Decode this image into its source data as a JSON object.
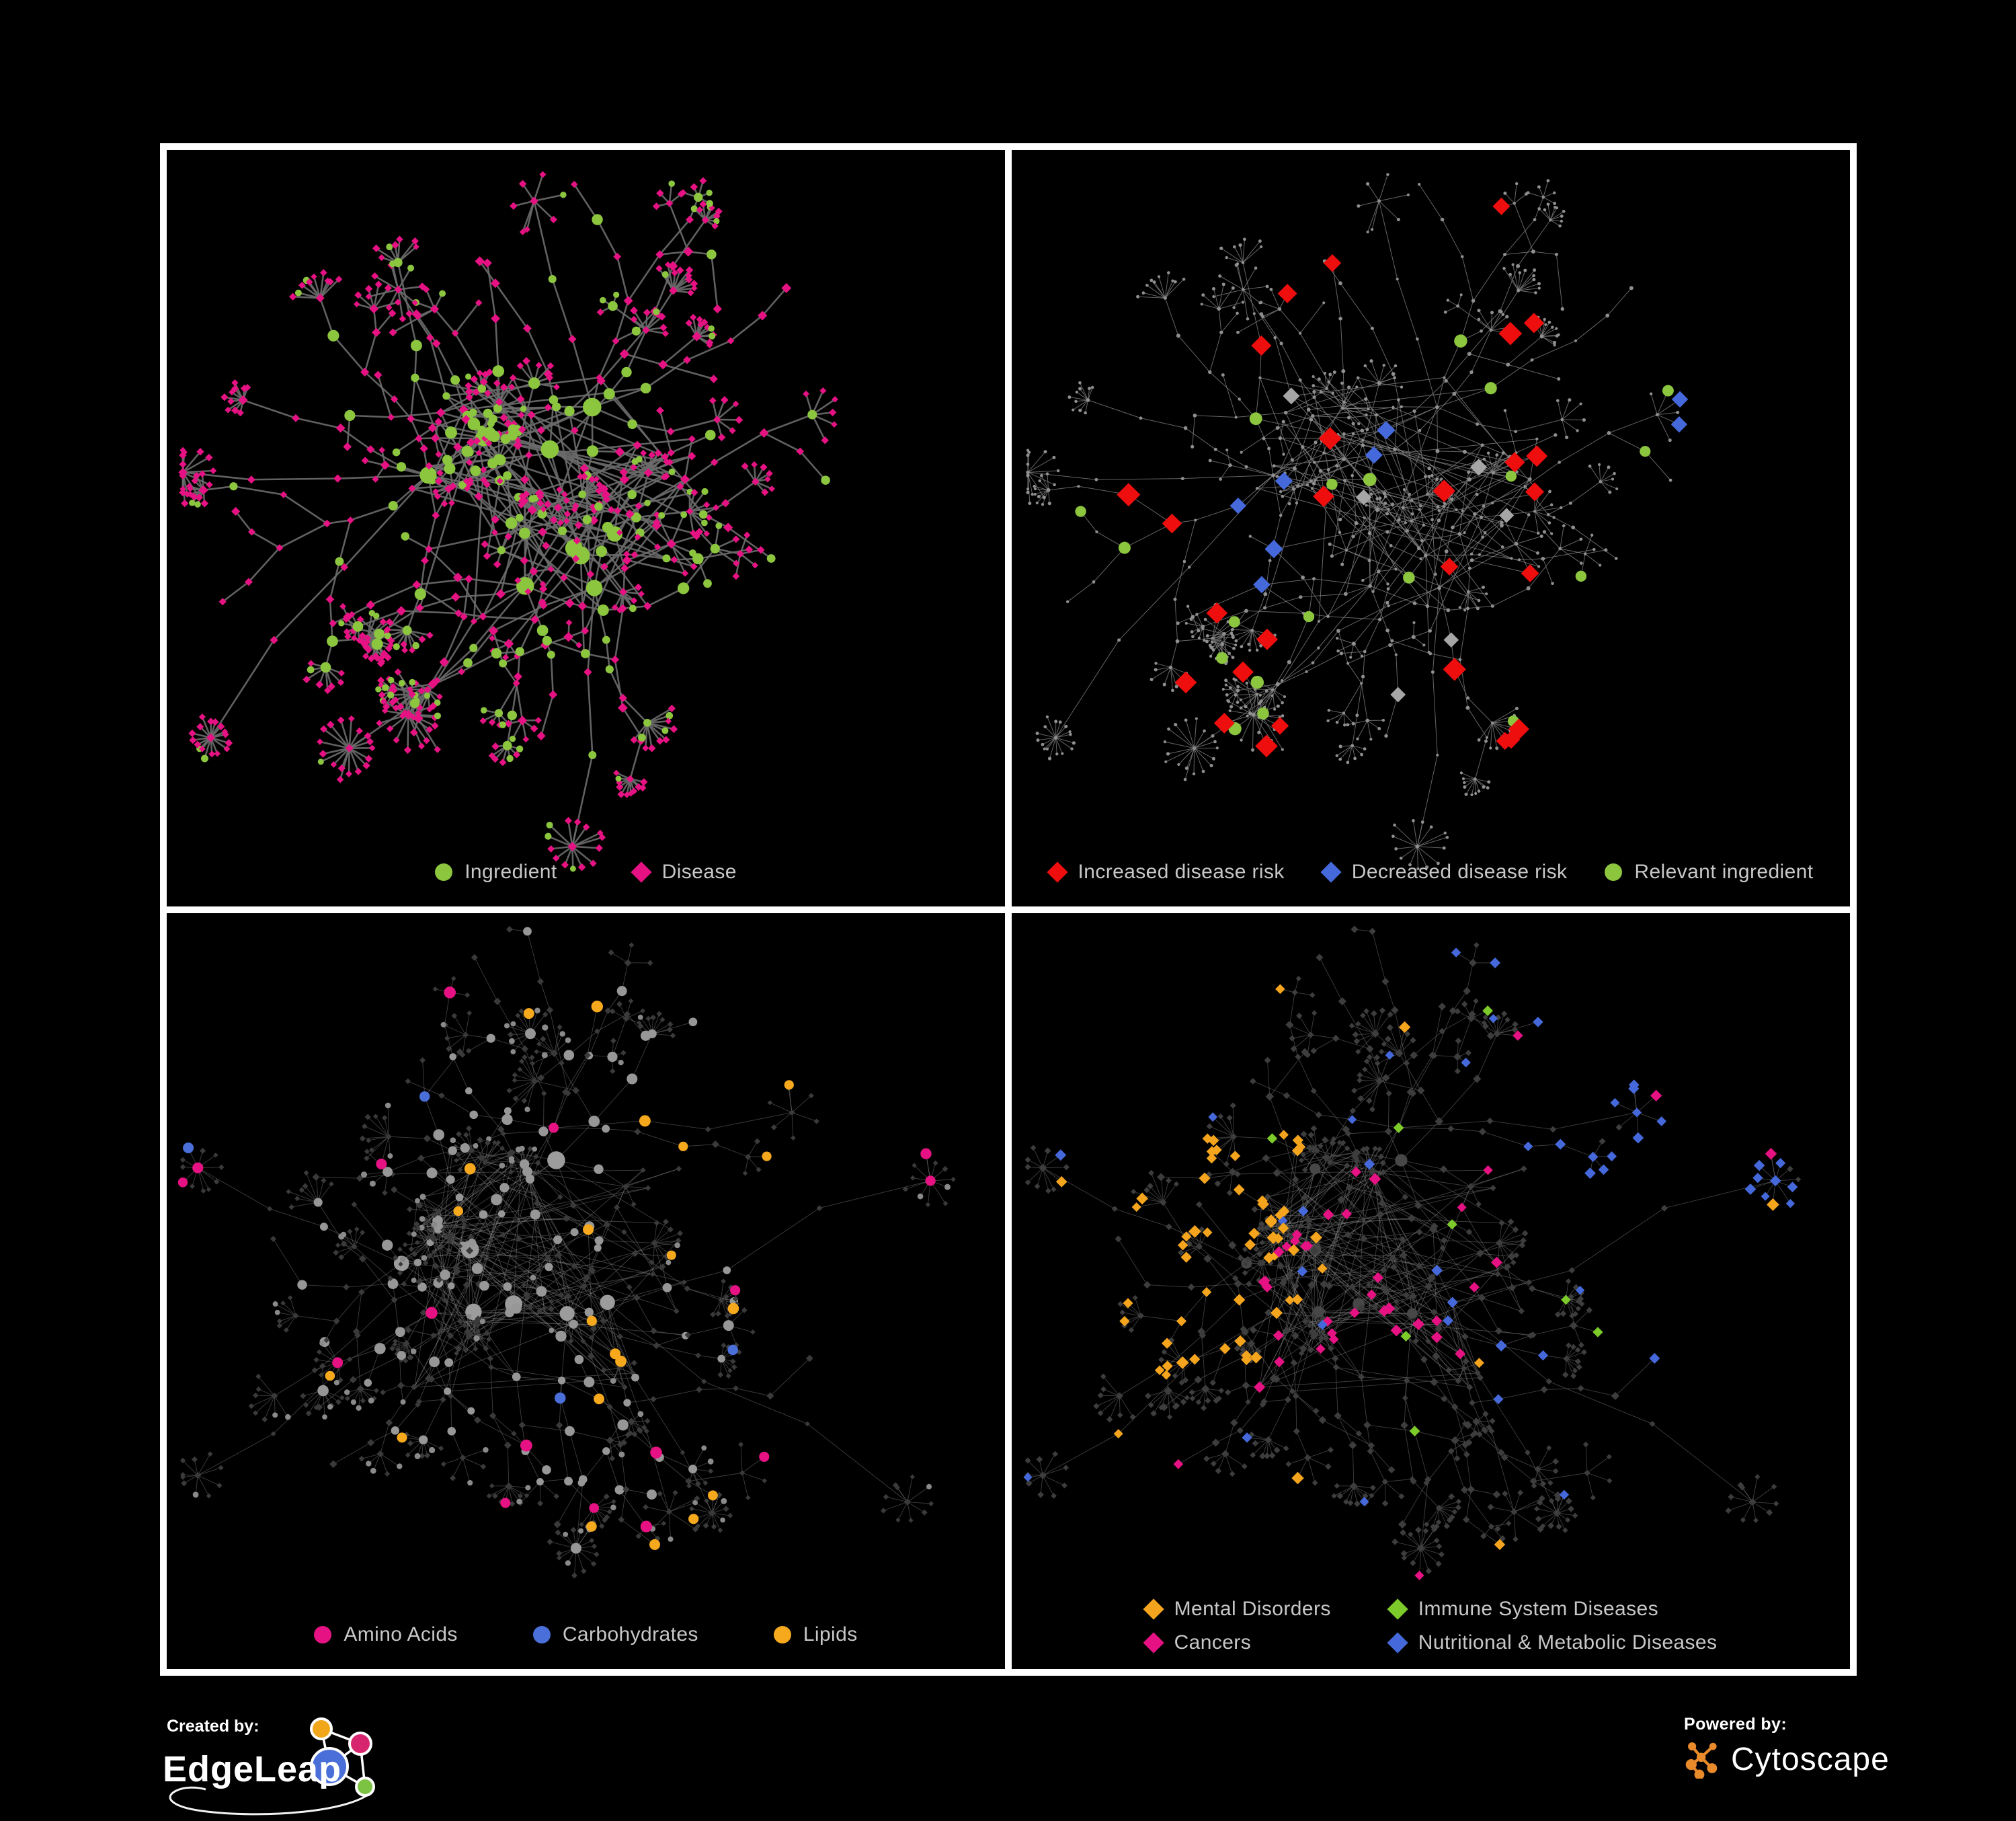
{
  "page": {
    "background": "#000000",
    "panel_border": "#FFFFFF",
    "legend_text_color": "#C7C7C7"
  },
  "panels": [
    {
      "id": "ingredient-disease",
      "legend": [
        {
          "label": "Ingredient",
          "shape": "circle",
          "color": "#8CC63F"
        },
        {
          "label": "Disease",
          "shape": "diamond",
          "color": "#E61283"
        }
      ],
      "network": {
        "mode": "duo",
        "seed": 1337,
        "hubs": 9,
        "sats": 7,
        "cross": 80,
        "edge": {
          "color": "#6C6C6C",
          "width": 2.6,
          "opacity": 0.9
        },
        "circle_color": "#8CC63F",
        "diamond_color": "#E61283",
        "circle_prob": 0.32,
        "leaf_circle_prob": 0.15,
        "clump": {
          "hub": 1,
          "count": 16
        }
      }
    },
    {
      "id": "disease-risk",
      "legend": [
        {
          "label": "Increased disease risk",
          "shape": "diamond",
          "color": "#EE0E0E"
        },
        {
          "label": "Decreased disease risk",
          "shape": "diamond",
          "color": "#4569DB"
        },
        {
          "label": "Relevant ingredient",
          "shape": "circle",
          "color": "#8CC63F"
        }
      ],
      "network": {
        "mode": "dim",
        "seed": 1337,
        "hubs": 9,
        "sats": 7,
        "cross": 80,
        "edge": {
          "color": "#7E7E7E",
          "width": 1.0,
          "opacity": 0.8
        },
        "base_color": "#8F8F8F",
        "highlights": [
          {
            "shape": "d",
            "color": "#EE0E0E",
            "size": [
              13,
              18
            ],
            "clusters": [
              {
                "c": [
                  0.42,
                  0.5
                ],
                "r": 0.24,
                "count": 22
              }
            ],
            "targets": [
              [
                0.59,
                0.1
              ],
              [
                0.76,
                0.9
              ],
              [
                0.82,
                0.84
              ],
              [
                0.7,
                0.86
              ],
              [
                0.17,
                0.48
              ]
            ]
          },
          {
            "shape": "d",
            "color": "#4569DB",
            "size": [
              11,
              14
            ],
            "targets": [
              [
                0.28,
                0.47
              ],
              [
                0.3,
                0.52
              ],
              [
                0.27,
                0.56
              ],
              [
                0.44,
                0.4
              ],
              [
                0.46,
                0.36
              ],
              [
                0.9,
                0.36
              ],
              [
                0.925,
                0.355
              ],
              [
                0.33,
                0.44
              ]
            ]
          },
          {
            "shape": "d",
            "color": "#A6A6A6",
            "size": [
              11,
              13
            ],
            "targets": [
              [
                0.33,
                0.33
              ],
              [
                0.41,
                0.46
              ],
              [
                0.52,
                0.63
              ],
              [
                0.55,
                0.42
              ],
              [
                0.6,
                0.47
              ],
              [
                0.48,
                0.75
              ]
            ]
          },
          {
            "shape": "c",
            "color": "#8CC63F",
            "size": [
              8,
              10
            ],
            "clusters": [
              {
                "c": [
                  0.4,
                  0.46
                ],
                "r": 0.26,
                "count": 13
              }
            ],
            "targets": [
              [
                0.15,
                0.55
              ],
              [
                0.09,
                0.47
              ],
              [
                0.75,
                0.42
              ],
              [
                0.68,
                0.62
              ],
              [
                0.57,
                0.3
              ],
              [
                0.8,
                0.25
              ]
            ]
          }
        ]
      }
    },
    {
      "id": "nutrient-classes",
      "legend": [
        {
          "label": "Amino Acids",
          "shape": "circle",
          "color": "#E61283"
        },
        {
          "label": "Carbohydrates",
          "shape": "circle",
          "color": "#4A6FD8"
        },
        {
          "label": "Lipids",
          "shape": "circle",
          "color": "#F7A91D"
        }
      ],
      "network": {
        "mode": "mixed",
        "seed": 4242,
        "hubs": 10,
        "sats": 8,
        "cross": 130,
        "edge": {
          "color": "#9A9A9A",
          "width": 0.9,
          "opacity": 0.4
        },
        "circle_gray": "#979797",
        "diamond_dark": "#3A3A3A",
        "highlights": [
          {
            "shape": "c",
            "color": "#F7A91D",
            "size": [
              7,
              9
            ],
            "only": "c",
            "clusters": [
              {
                "c": [
                  0.7,
                  0.27
                ],
                "r": 0.1,
                "count": 24
              },
              {
                "c": [
                  0.55,
                  0.56
                ],
                "r": 0.035,
                "count": 5
              }
            ],
            "scatter": 14
          },
          {
            "shape": "c",
            "color": "#4A6FD8",
            "size": [
              7,
              8.5
            ],
            "only": "c",
            "clusters": [
              {
                "c": [
                  0.685,
                  0.33
                ],
                "r": 0.055,
                "count": 8
              }
            ],
            "targets": [
              [
                0.07,
                0.13
              ],
              [
                0.45,
                0.63
              ],
              [
                0.765,
                0.585
              ],
              [
                0.3,
                0.2
              ]
            ]
          },
          {
            "shape": "c",
            "color": "#E61283",
            "size": [
              7,
              9
            ],
            "only": "c",
            "targets": [
              [
                0.13,
                0.26
              ],
              [
                0.05,
                0.42
              ],
              [
                0.3,
                0.52
              ],
              [
                0.45,
                0.7
              ],
              [
                0.5,
                0.78
              ],
              [
                0.37,
                0.84
              ],
              [
                0.6,
                0.7
              ],
              [
                0.655,
                0.5
              ],
              [
                0.86,
                0.3
              ],
              [
                0.92,
                0.13
              ],
              [
                0.33,
                0.12
              ],
              [
                0.25,
                0.33
              ],
              [
                0.48,
                0.3
              ],
              [
                0.55,
                0.88
              ],
              [
                0.18,
                0.6
              ],
              [
                0.72,
                0.75
              ]
            ]
          }
        ]
      }
    },
    {
      "id": "disease-categories",
      "legend": [
        {
          "label": "Mental Disorders",
          "shape": "diamond",
          "color": "#F5A51D"
        },
        {
          "label": "Immune System Diseases",
          "shape": "diamond",
          "color": "#7CCB2B"
        },
        {
          "label": "Cancers",
          "shape": "diamond",
          "color": "#E61283"
        },
        {
          "label": "Nutritional & Metabolic Diseases",
          "shape": "diamond",
          "color": "#4569DB"
        }
      ],
      "network": {
        "mode": "dark",
        "seed": 4242,
        "hubs": 10,
        "sats": 8,
        "cross": 130,
        "edge": {
          "color": "#8C8C8C",
          "width": 0.9,
          "opacity": 0.45
        },
        "base_color": "#3D3D3D",
        "hub_color": "#474747",
        "highlights": [
          {
            "shape": "d",
            "color": "#F5A51D",
            "size": [
              7,
              9.5
            ],
            "clusters": [
              {
                "c": [
                  0.205,
                  0.42
                ],
                "r": 0.13,
                "count": 55
              }
            ],
            "targets": [
              [
                0.48,
                0.14
              ],
              [
                0.14,
                0.06
              ],
              [
                0.55,
                0.6
              ],
              [
                0.35,
                0.74
              ],
              [
                0.6,
                0.88
              ],
              [
                0.92,
                0.42
              ],
              [
                0.12,
                0.7
              ]
            ]
          },
          {
            "shape": "d",
            "color": "#E61283",
            "size": [
              7,
              9
            ],
            "clusters": [
              {
                "c": [
                  0.44,
                  0.5
                ],
                "r": 0.11,
                "count": 32
              }
            ],
            "targets": [
              [
                0.93,
                0.13
              ],
              [
                0.955,
                0.165
              ],
              [
                0.9,
                0.1
              ],
              [
                0.2,
                0.78
              ],
              [
                0.3,
                0.63
              ],
              [
                0.5,
                0.9
              ],
              [
                0.56,
                0.35
              ],
              [
                0.63,
                0.2
              ]
            ]
          },
          {
            "shape": "d",
            "color": "#4569DB",
            "size": [
              6.5,
              8.5
            ],
            "clusters": [
              {
                "c": [
                  0.8,
                  0.285
                ],
                "r": 0.14,
                "count": 18
              }
            ],
            "targets": [
              [
                0.62,
                0.04
              ],
              [
                0.66,
                0.07
              ],
              [
                0.75,
                0.1
              ],
              [
                0.42,
                0.28
              ],
              [
                0.35,
                0.4
              ],
              [
                0.1,
                0.28
              ],
              [
                0.18,
                0.16
              ],
              [
                0.57,
                0.57
              ],
              [
                0.6,
                0.62
              ],
              [
                0.64,
                0.59
              ],
              [
                0.52,
                0.05
              ],
              [
                0.88,
                0.55
              ],
              [
                0.72,
                0.47
              ],
              [
                0.67,
                0.33
              ]
            ],
            "scatter": 14
          },
          {
            "shape": "d",
            "color": "#7CCB2B",
            "size": [
              7,
              8
            ],
            "targets": [
              [
                0.47,
                0.27
              ],
              [
                0.52,
                0.4
              ],
              [
                0.44,
                0.56
              ],
              [
                0.3,
                0.3
              ],
              [
                0.57,
                0.13
              ],
              [
                0.65,
                0.5
              ],
              [
                0.5,
                0.7
              ],
              [
                0.78,
                0.52
              ]
            ]
          }
        ]
      }
    }
  ],
  "footer": {
    "created_by_label": "Created by:",
    "created_by_name": "EdgeLeap",
    "powered_by_label": "Powered by:",
    "powered_by_name": "Cytoscape",
    "logo_colors": {
      "blue": "#4A6FD8",
      "orange": "#F2A71B",
      "pink": "#D6246E",
      "green": "#7CC243",
      "cytoscape_orange": "#E98A2B"
    }
  }
}
